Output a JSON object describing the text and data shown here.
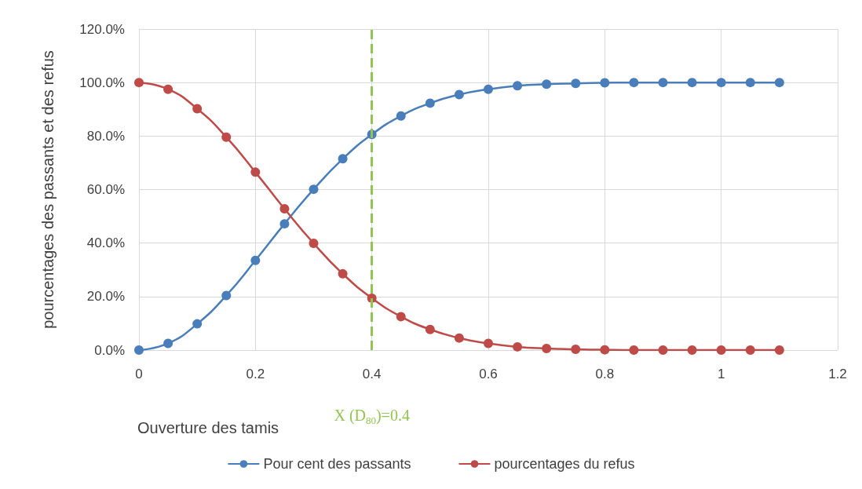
{
  "chart_data": {
    "type": "line",
    "xlabel": "Ouverture des tamis",
    "ylabel": "pourcentages des passants et des refus",
    "x": [
      0,
      0.05,
      0.1,
      0.15,
      0.2,
      0.25,
      0.3,
      0.35,
      0.4,
      0.45,
      0.5,
      0.55,
      0.6,
      0.65,
      0.7,
      0.75,
      0.8,
      0.85,
      0.9,
      0.95,
      1,
      1.05,
      1.1
    ],
    "series": [
      {
        "name": "Pour cent des passants",
        "color": "#4a7ebb",
        "values": [
          0,
          2.5,
          9.8,
          20.4,
          33.5,
          47.2,
          60.1,
          71.5,
          80.6,
          87.5,
          92.3,
          95.5,
          97.5,
          98.8,
          99.4,
          99.7,
          99.9,
          100,
          100,
          100,
          100,
          100,
          100
        ]
      },
      {
        "name": "pourcentages du refus",
        "color": "#be4b48",
        "values": [
          100,
          97.5,
          90.2,
          79.6,
          66.5,
          52.8,
          39.9,
          28.5,
          19.4,
          12.5,
          7.7,
          4.5,
          2.5,
          1.2,
          0.6,
          0.3,
          0.1,
          0,
          0,
          0,
          0,
          0,
          0
        ]
      }
    ],
    "xlim": [
      0,
      1.2
    ],
    "xticks": [
      0,
      0.2,
      0.4,
      0.6,
      0.8,
      1,
      1.2
    ],
    "ylim": [
      0,
      120
    ],
    "yticks": [
      {
        "value": 0,
        "label": "0.0%"
      },
      {
        "value": 20,
        "label": "20.0%"
      },
      {
        "value": 40,
        "label": "40.0%"
      },
      {
        "value": 60,
        "label": "60.0%"
      },
      {
        "value": 80,
        "label": "80.0%"
      },
      {
        "value": 100,
        "label": "100.0%"
      },
      {
        "value": 120,
        "label": "120.0%"
      }
    ],
    "ref_lines": [
      {
        "axis": "x",
        "value": 0.4,
        "label": "X (D$_{80}$)=0.4",
        "color": "#92c353",
        "line_style": "dashed"
      }
    ],
    "grid": true,
    "legend": "bottom",
    "marker": "circle",
    "line_style": "solid"
  }
}
